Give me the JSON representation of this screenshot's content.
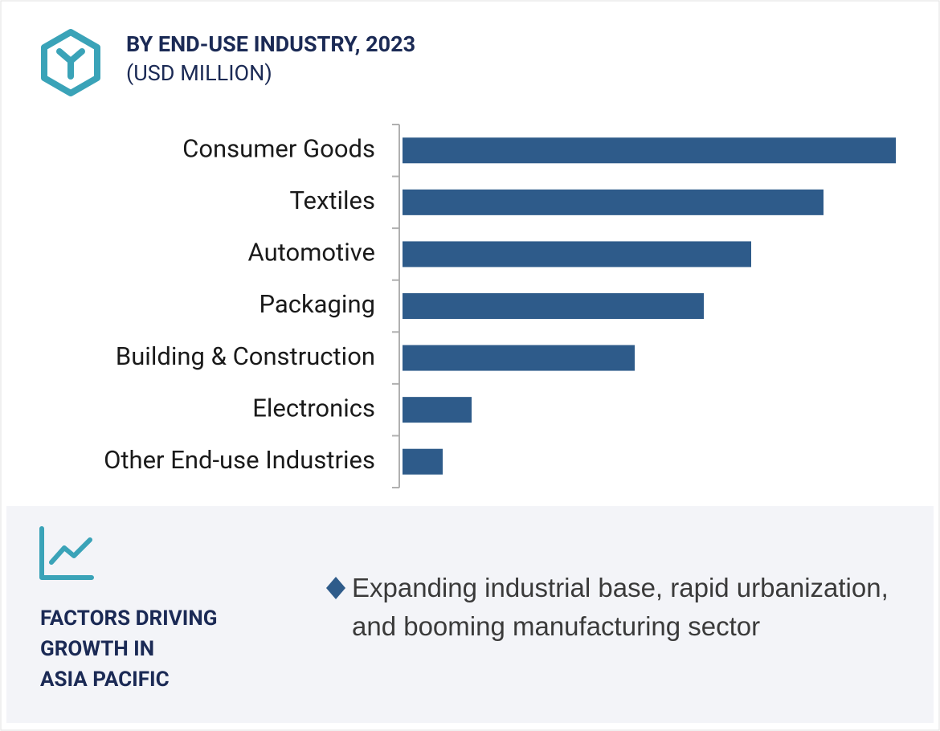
{
  "chart_data": {
    "type": "bar",
    "title": "BY END-USE INDUSTRY, 2023",
    "subtitle": "(USD MILLION)",
    "categories": [
      "Consumer Goods",
      "Textiles",
      "Automotive",
      "Packaging",
      "Building & Construction",
      "Electronics",
      "Other End-use Industries"
    ],
    "values": [
      614,
      524,
      434,
      375,
      289,
      86,
      50
    ],
    "color": "#2e5b8a"
  },
  "factors": {
    "title_lines": [
      "FACTORS DRIVING",
      "GROWTH IN",
      "ASIA PACIFIC"
    ],
    "bullet": "Expanding industrial base, rapid urbanization, and booming manufacturing sector"
  }
}
